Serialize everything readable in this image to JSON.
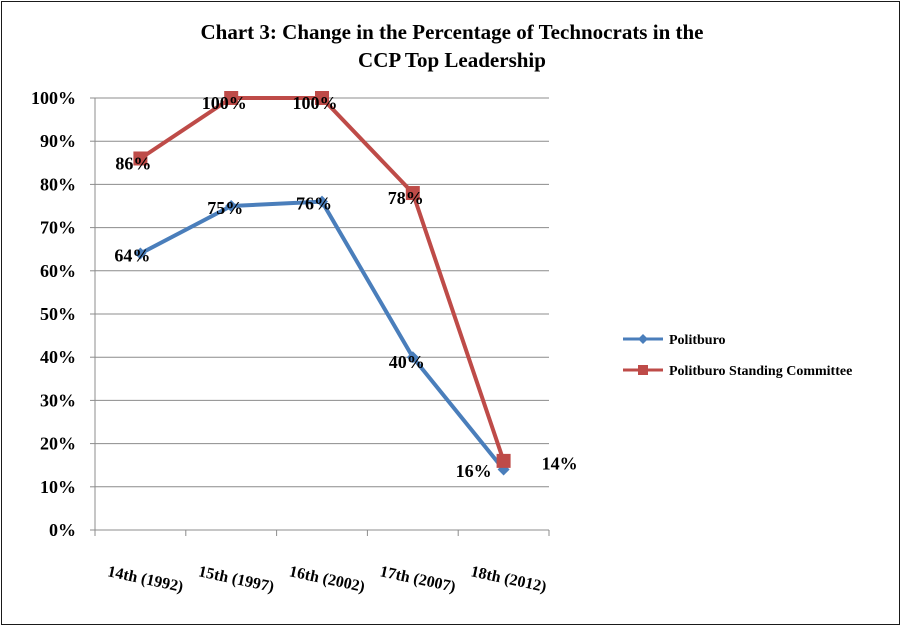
{
  "chart_data": {
    "type": "line",
    "title": "Chart 3: Change in the Percentage of Technocrats in the CCP Top Leadership",
    "title_lines": [
      "Chart 3: Change in the Percentage of Technocrats in the",
      "CCP Top Leadership"
    ],
    "categories": [
      "14th (1992)",
      "15th (1997)",
      "16th (2002)",
      "17th (2007)",
      "18th (2012)"
    ],
    "ylim": [
      0,
      100
    ],
    "yticks": [
      0,
      10,
      20,
      30,
      40,
      50,
      60,
      70,
      80,
      90,
      100
    ],
    "ytick_labels": [
      "0%",
      "10%",
      "20%",
      "30%",
      "40%",
      "50%",
      "60%",
      "70%",
      "80%",
      "90%",
      "100%"
    ],
    "grid": true,
    "legend_position": "right",
    "series": [
      {
        "name": "Politburo",
        "color": "#4a7ebb",
        "marker": "diamond",
        "values": [
          64,
          75,
          76,
          40,
          14
        ],
        "data_labels": [
          "64%",
          "75%",
          "76%",
          "40%",
          "14%"
        ]
      },
      {
        "name": "Politburo Standing Committee",
        "color": "#be4b48",
        "marker": "square",
        "values": [
          86,
          100,
          100,
          78,
          16
        ],
        "data_labels": [
          "86%",
          "100%",
          "100%",
          "78%",
          "16%"
        ]
      }
    ]
  }
}
